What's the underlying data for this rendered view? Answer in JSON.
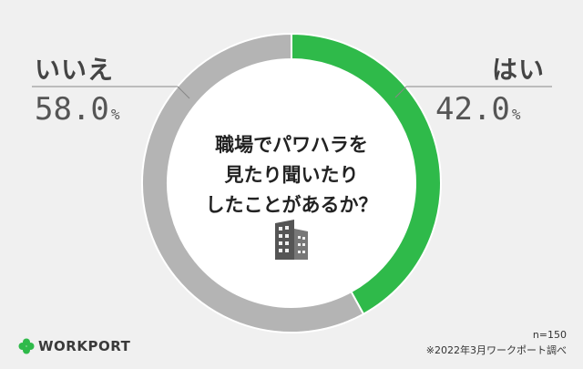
{
  "chart_data": {
    "type": "pie",
    "donut": true,
    "title_lines": [
      "職場でパワハラを",
      "見たり聞いたり",
      "したことがあるか？"
    ],
    "slices": [
      {
        "label": "はい",
        "value": 42.0,
        "value_text": "42.0",
        "unit": "%",
        "color": "#2fba4a"
      },
      {
        "label": "いいえ",
        "value": 58.0,
        "value_text": "58.0",
        "unit": "%",
        "color": "#b4b4b4"
      }
    ]
  },
  "footer": {
    "n": "n=150",
    "source": "※2022年3月ワークポート調べ"
  },
  "logo": {
    "text": "WORKPORT",
    "icon": "clover-icon",
    "color": "#2fba4a"
  },
  "icons": {
    "center": "building-icon"
  }
}
